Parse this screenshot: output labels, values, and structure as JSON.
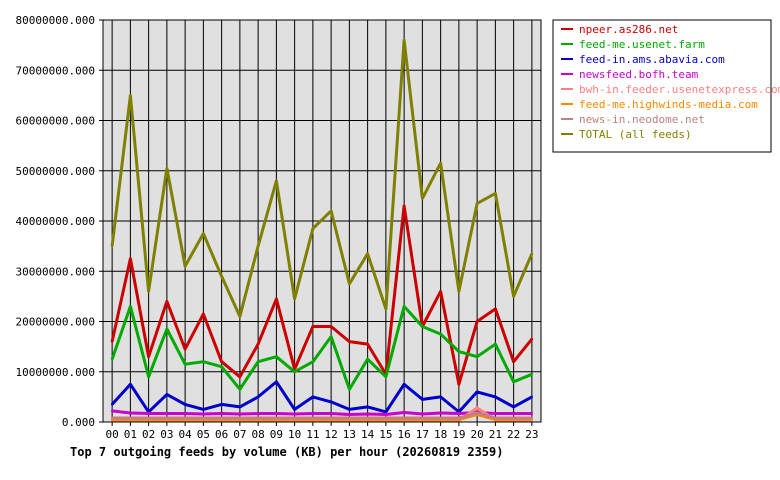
{
  "chart_data": {
    "type": "line",
    "title": "Top 7 outgoing feeds by volume (KB) per hour (20260819 2359)",
    "xlabel": "",
    "ylabel": "",
    "ylim": [
      0,
      80000000
    ],
    "yticks": [
      "0.000",
      "10000000.000",
      "20000000.000",
      "30000000.000",
      "40000000.000",
      "50000000.000",
      "60000000.000",
      "70000000.000",
      "80000000.000"
    ],
    "categories": [
      "00",
      "01",
      "02",
      "03",
      "04",
      "05",
      "06",
      "07",
      "08",
      "09",
      "10",
      "11",
      "12",
      "13",
      "14",
      "15",
      "16",
      "17",
      "18",
      "19",
      "20",
      "21",
      "22",
      "23"
    ],
    "grid": true,
    "legend_position": "top-right",
    "plot_background": "#e0e0e0",
    "series": [
      {
        "name": "npeer.as286.net",
        "color": "#cc0000",
        "values": [
          16000000,
          32500000,
          13000000,
          24000000,
          14500000,
          21500000,
          12000000,
          9000000,
          15500000,
          24500000,
          10500000,
          19000000,
          19000000,
          16000000,
          15500000,
          9500000,
          43000000,
          19000000,
          26000000,
          7500000,
          20000000,
          22500000,
          12000000,
          16500000
        ]
      },
      {
        "name": "feed-me.usenet.farm",
        "color": "#00aa00",
        "values": [
          12500000,
          23000000,
          9000000,
          18500000,
          11500000,
          12000000,
          11000000,
          6500000,
          12000000,
          13000000,
          10000000,
          12000000,
          17000000,
          6500000,
          12500000,
          9000000,
          23000000,
          19000000,
          17500000,
          14000000,
          13000000,
          15500000,
          8000000,
          9500000
        ]
      },
      {
        "name": "feed-in.ams.abavia.com",
        "color": "#0000cc",
        "values": [
          3500000,
          7500000,
          2000000,
          5500000,
          3500000,
          2500000,
          3500000,
          3000000,
          5000000,
          8000000,
          2500000,
          5000000,
          4000000,
          2500000,
          3000000,
          2000000,
          7500000,
          4500000,
          5000000,
          2000000,
          6000000,
          5000000,
          3000000,
          5000000
        ]
      },
      {
        "name": "newsfeed.bofh.team",
        "color": "#cc00cc",
        "values": [
          2200000,
          1800000,
          1700000,
          1700000,
          1700000,
          1600000,
          1700000,
          1600000,
          1700000,
          1700000,
          1600000,
          1700000,
          1700000,
          1500000,
          1600000,
          1500000,
          1900000,
          1600000,
          1800000,
          1700000,
          1900000,
          1700000,
          1700000,
          1700000
        ]
      },
      {
        "name": "bwh-in.feeder.usenetexpress.com",
        "color": "#ff8080",
        "values": [
          300000,
          300000,
          300000,
          300000,
          300000,
          300000,
          300000,
          300000,
          300000,
          300000,
          300000,
          300000,
          300000,
          300000,
          300000,
          300000,
          400000,
          300000,
          300000,
          300000,
          2800000,
          400000,
          300000,
          400000
        ]
      },
      {
        "name": "feed-me.highwinds-media.com",
        "color": "#ff8800",
        "values": [
          500000,
          500000,
          500000,
          500000,
          500000,
          500000,
          500000,
          500000,
          500000,
          500000,
          500000,
          500000,
          500000,
          500000,
          500000,
          500000,
          500000,
          500000,
          500000,
          500000,
          1500000,
          500000,
          500000,
          600000
        ]
      },
      {
        "name": "news-in.neodome.net",
        "color": "#c08080",
        "values": [
          800000,
          800000,
          800000,
          800000,
          800000,
          800000,
          800000,
          800000,
          800000,
          800000,
          800000,
          800000,
          800000,
          800000,
          800000,
          800000,
          800000,
          800000,
          800000,
          800000,
          1800000,
          800000,
          800000,
          800000
        ]
      },
      {
        "name": "TOTAL (all feeds)",
        "color": "#808000",
        "values": [
          35000000,
          65000000,
          26000000,
          50500000,
          31000000,
          37500000,
          29000000,
          21000000,
          35000000,
          48000000,
          24500000,
          38500000,
          42000000,
          27500000,
          33500000,
          22500000,
          76000000,
          44500000,
          51500000,
          26000000,
          43500000,
          45500000,
          25000000,
          33500000
        ]
      }
    ]
  }
}
